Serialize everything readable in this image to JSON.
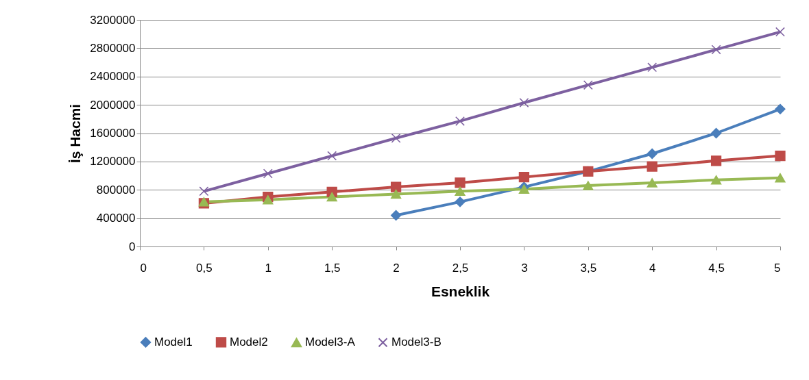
{
  "chart_data": {
    "type": "line",
    "xlabel": "Esneklik",
    "ylabel": "İş Hacmi",
    "x": [
      0.5,
      1,
      1.5,
      2,
      2.5,
      3,
      3.5,
      4,
      4.5,
      5
    ],
    "xlim": [
      0,
      5
    ],
    "xticks": [
      0,
      {
        "value": 0.5,
        "label": "0,5"
      },
      1,
      {
        "value": 1.5,
        "label": "1,5"
      },
      2,
      {
        "value": 2.5,
        "label": "2,5"
      },
      3,
      {
        "value": 3.5,
        "label": "3,5"
      },
      4,
      {
        "value": 4.5,
        "label": "4,5"
      },
      5
    ],
    "ylim": [
      0,
      3200000
    ],
    "yticks": [
      0,
      400000,
      800000,
      1200000,
      1600000,
      2000000,
      2400000,
      2800000,
      3200000
    ],
    "grid": "y",
    "legend": "bottom",
    "line_style": "solid",
    "series": [
      {
        "name": "Model1",
        "color": "#4a7ebb",
        "marker": "diamond",
        "values": [
          null,
          null,
          null,
          440000,
          630000,
          840000,
          1060000,
          1310000,
          1600000,
          1940000
        ]
      },
      {
        "name": "Model2",
        "color": "#be4b48",
        "marker": "square",
        "values": [
          610000,
          700000,
          770000,
          840000,
          900000,
          980000,
          1060000,
          1130000,
          1210000,
          1280000
        ]
      },
      {
        "name": "Model3-A",
        "color": "#98b954",
        "marker": "triangle",
        "values": [
          630000,
          660000,
          700000,
          740000,
          780000,
          810000,
          860000,
          900000,
          940000,
          970000
        ]
      },
      {
        "name": "Model3-B",
        "color": "#7d60a0",
        "marker": "cross",
        "values": [
          780000,
          1030000,
          1280000,
          1530000,
          1770000,
          2030000,
          2280000,
          2530000,
          2780000,
          3030000
        ]
      }
    ]
  }
}
